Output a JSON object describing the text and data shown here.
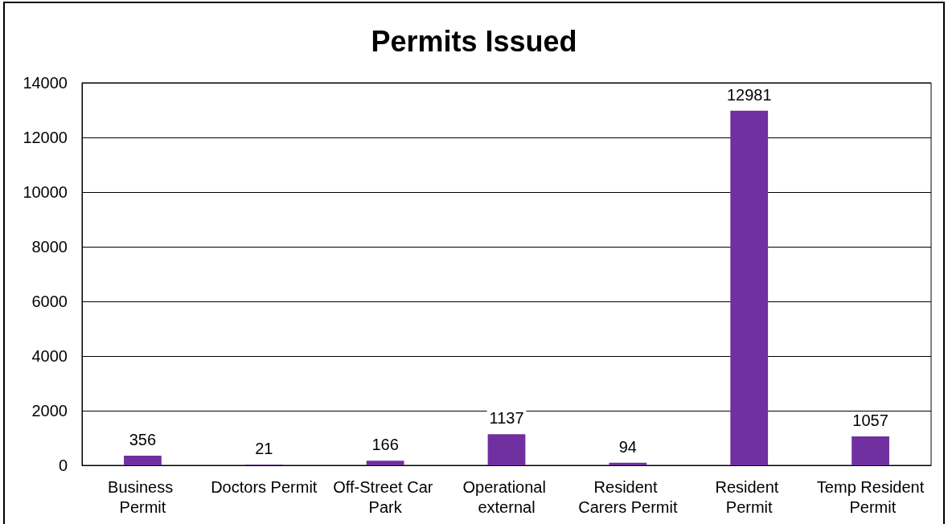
{
  "chart_data": {
    "type": "bar",
    "title": "Permits Issued",
    "categories": [
      "Business Permit",
      "Doctors Permit",
      "Off-Street Car Park",
      "Operational external",
      "Resident Carers Permit",
      "Resident Permit",
      "Temp Resident Permit"
    ],
    "values": [
      356,
      21,
      166,
      1137,
      94,
      12981,
      1057
    ],
    "color": "#7030a0",
    "ylim": [
      0,
      14000
    ],
    "yticks": [
      0,
      2000,
      4000,
      6000,
      8000,
      10000,
      12000,
      14000
    ],
    "grid": "y",
    "data_labels": true
  }
}
